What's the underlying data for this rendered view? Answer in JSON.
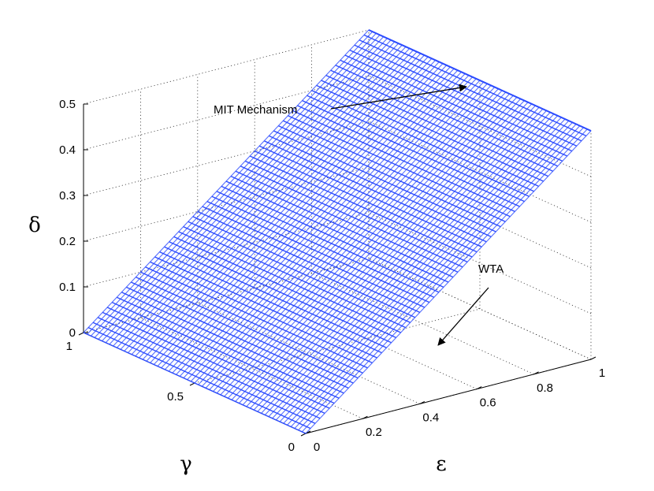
{
  "chart_data": {
    "type": "surface3d",
    "xlabel": "ε",
    "ylabel": "γ",
    "zlabel": "δ",
    "x_ticks": [
      "0",
      "0.2",
      "0.4",
      "0.6",
      "0.8",
      "1"
    ],
    "y_ticks": [
      "0",
      "0.5",
      "1"
    ],
    "z_ticks": [
      "0",
      "0.1",
      "0.2",
      "0.3",
      "0.4",
      "0.5"
    ],
    "xlim": [
      0,
      1
    ],
    "ylim": [
      0,
      1
    ],
    "zlim": [
      0,
      0.5
    ],
    "grid": true,
    "surface_color": "#2b4bff",
    "annotations": [
      {
        "text": "MIT Mechanism",
        "target": [
          1,
          1,
          0.5
        ]
      },
      {
        "text": "WTA",
        "target": [
          0.7,
          0.2,
          0
        ]
      }
    ],
    "series": [
      {
        "y": 0,
        "points": [
          [
            0,
            0
          ],
          [
            0.2,
            0.1
          ],
          [
            0.4,
            0.2
          ],
          [
            0.6,
            0.3
          ],
          [
            0.8,
            0.4
          ],
          [
            1.0,
            0.5
          ]
        ]
      },
      {
        "y": 0.5,
        "points": [
          [
            0,
            0
          ],
          [
            0.2,
            0.1
          ],
          [
            0.4,
            0.2
          ],
          [
            0.6,
            0.3
          ],
          [
            0.8,
            0.4
          ],
          [
            1.0,
            0.5
          ]
        ]
      },
      {
        "y": 1,
        "points": [
          [
            0,
            0
          ],
          [
            0.2,
            0.1
          ],
          [
            0.4,
            0.2
          ],
          [
            0.6,
            0.3
          ],
          [
            0.8,
            0.4
          ],
          [
            1.0,
            0.5
          ]
        ]
      }
    ]
  }
}
